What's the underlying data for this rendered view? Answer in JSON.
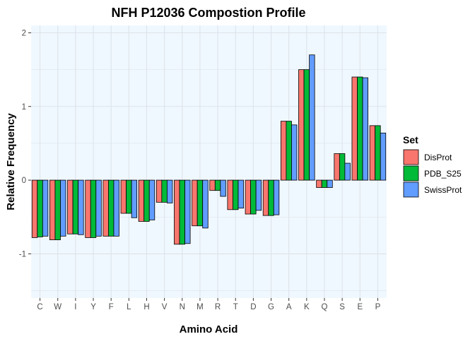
{
  "chart_data": {
    "type": "bar",
    "title": "NFH P12036 Compostion Profile",
    "xlabel": "Amino Acid",
    "ylabel": "Relative Frequency",
    "categories": [
      "C",
      "W",
      "I",
      "Y",
      "F",
      "L",
      "H",
      "V",
      "N",
      "M",
      "R",
      "T",
      "D",
      "G",
      "A",
      "K",
      "Q",
      "S",
      "E",
      "P"
    ],
    "series": [
      {
        "name": "DisProt",
        "color": "#F8766D",
        "values": [
          -0.78,
          -0.81,
          -0.73,
          -0.78,
          -0.76,
          -0.45,
          -0.56,
          -0.3,
          -0.87,
          -0.62,
          -0.14,
          -0.4,
          -0.46,
          -0.48,
          0.8,
          1.5,
          -0.1,
          0.36,
          1.4,
          0.74
        ]
      },
      {
        "name": "PDB_S25",
        "color": "#00BA38",
        "values": [
          -0.77,
          -0.81,
          -0.73,
          -0.78,
          -0.76,
          -0.45,
          -0.56,
          -0.3,
          -0.87,
          -0.62,
          -0.14,
          -0.4,
          -0.46,
          -0.48,
          0.8,
          1.5,
          -0.1,
          0.36,
          1.4,
          0.74
        ]
      },
      {
        "name": "SwissProt",
        "color": "#619CFF",
        "values": [
          -0.76,
          -0.76,
          -0.74,
          -0.76,
          -0.76,
          -0.51,
          -0.54,
          -0.31,
          -0.86,
          -0.65,
          -0.22,
          -0.38,
          -0.41,
          -0.47,
          0.75,
          1.7,
          -0.1,
          0.23,
          1.39,
          0.64
        ]
      }
    ],
    "ylim": [
      -1.6,
      2.1
    ],
    "yticks": [
      -1,
      0,
      1,
      2
    ],
    "grid": true,
    "panel_background": "#F0F8FF",
    "grid_color": "#DDE4EA",
    "legend": {
      "title": "Set",
      "position": "right"
    }
  }
}
